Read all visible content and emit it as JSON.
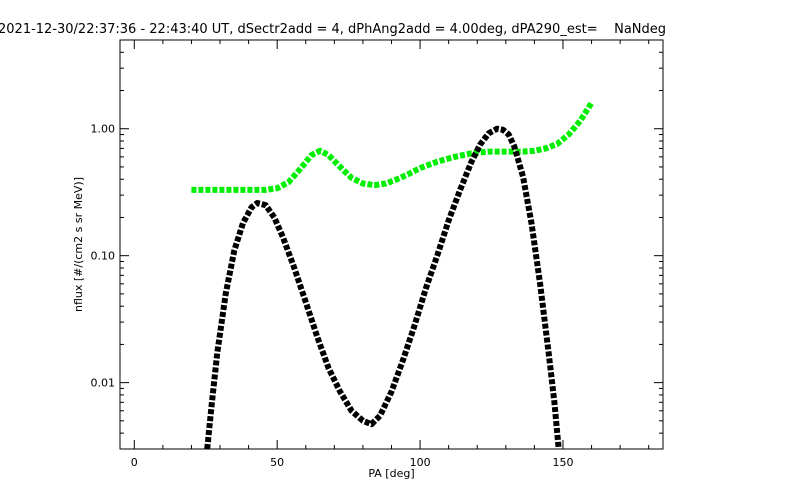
{
  "chart_data": {
    "type": "line",
    "title": "2021-12-30/22:37:36 - 22:43:40 UT, dSectr2add = 4, dPhAng2add = 4.00deg, dPA290_est=    NaNdeg",
    "xlabel": "PA [deg]",
    "ylabel": "nflux [#/(cm2 s sr MeV)]",
    "xlim": [
      -5,
      185
    ],
    "ylim": [
      0.003,
      5
    ],
    "yscale": "log",
    "x_ticks": [
      0,
      50,
      100,
      150
    ],
    "x_tick_labels": [
      "0",
      "50",
      "100",
      "150"
    ],
    "y_ticks": [
      0.01,
      0.1,
      1.0
    ],
    "y_tick_labels": [
      "0.01",
      "0.10",
      "1.00"
    ],
    "grid": false,
    "series": [
      {
        "color": "#00ee00",
        "style": "thick-dashed",
        "x": [
          20,
          30,
          40,
          46,
          50,
          54,
          58,
          62,
          65,
          68,
          72,
          76,
          80,
          84,
          88,
          92,
          96,
          100,
          106,
          112,
          118,
          124,
          130,
          136,
          140,
          144,
          148,
          152,
          156,
          160
        ],
        "y": [
          0.33,
          0.33,
          0.33,
          0.33,
          0.34,
          0.38,
          0.48,
          0.62,
          0.67,
          0.62,
          0.5,
          0.41,
          0.37,
          0.36,
          0.37,
          0.4,
          0.44,
          0.49,
          0.55,
          0.6,
          0.64,
          0.66,
          0.66,
          0.66,
          0.67,
          0.7,
          0.76,
          0.9,
          1.15,
          1.6
        ]
      },
      {
        "color": "#000000",
        "style": "thick-dashed",
        "x": [
          25.5,
          27,
          29,
          32,
          35,
          38,
          41,
          43,
          46,
          49,
          52,
          56,
          60,
          64,
          68,
          72,
          76,
          80,
          83,
          86,
          90,
          94,
          98,
          102,
          106,
          110,
          114,
          118,
          121,
          124,
          127,
          129,
          131,
          133,
          136,
          139,
          142,
          145,
          147,
          148.5
        ],
        "y": [
          0.003,
          0.0065,
          0.017,
          0.05,
          0.11,
          0.18,
          0.24,
          0.26,
          0.25,
          0.2,
          0.14,
          0.08,
          0.043,
          0.023,
          0.013,
          0.0085,
          0.006,
          0.005,
          0.0047,
          0.0055,
          0.0085,
          0.015,
          0.028,
          0.055,
          0.1,
          0.19,
          0.33,
          0.55,
          0.75,
          0.92,
          1.0,
          0.98,
          0.9,
          0.72,
          0.42,
          0.18,
          0.06,
          0.017,
          0.007,
          0.003
        ]
      }
    ]
  }
}
